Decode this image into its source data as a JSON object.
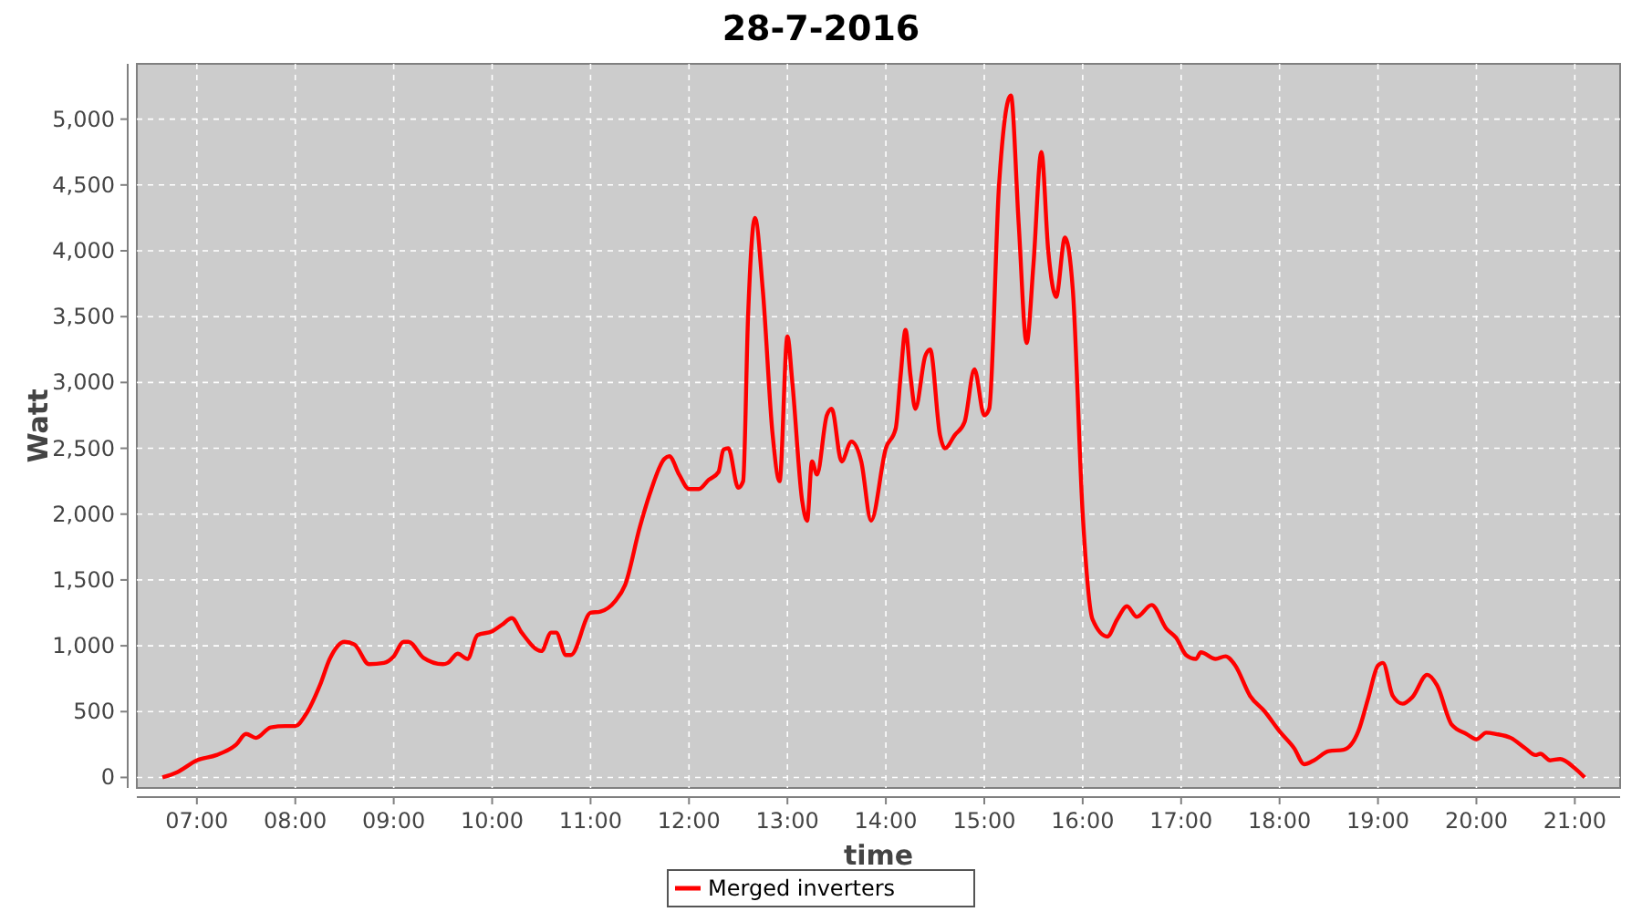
{
  "chart_data": {
    "type": "line",
    "title": "28-7-2016",
    "xlabel": "time",
    "ylabel": "Watt",
    "xlim": [
      6.39,
      21.46
    ],
    "ylim": [
      -80,
      5420
    ],
    "xticks": [
      {
        "value": 7,
        "label": "07:00"
      },
      {
        "value": 8,
        "label": "08:00"
      },
      {
        "value": 9,
        "label": "09:00"
      },
      {
        "value": 10,
        "label": "10:00"
      },
      {
        "value": 11,
        "label": "11:00"
      },
      {
        "value": 12,
        "label": "12:00"
      },
      {
        "value": 13,
        "label": "13:00"
      },
      {
        "value": 14,
        "label": "14:00"
      },
      {
        "value": 15,
        "label": "15:00"
      },
      {
        "value": 16,
        "label": "16:00"
      },
      {
        "value": 17,
        "label": "17:00"
      },
      {
        "value": 18,
        "label": "18:00"
      },
      {
        "value": 19,
        "label": "19:00"
      },
      {
        "value": 20,
        "label": "20:00"
      },
      {
        "value": 21,
        "label": "21:00"
      }
    ],
    "yticks": [
      0,
      500,
      {
        "value": 1000,
        "label": "1,000"
      },
      {
        "value": 1500,
        "label": "1,500"
      },
      {
        "value": 2000,
        "label": "2,000"
      },
      {
        "value": 2500,
        "label": "2,500"
      },
      {
        "value": 3000,
        "label": "3,000"
      },
      {
        "value": 3500,
        "label": "3,500"
      },
      {
        "value": 4000,
        "label": "4,000"
      },
      {
        "value": 4500,
        "label": "4,500"
      },
      {
        "value": 5000,
        "label": "5,000"
      }
    ],
    "grid": true,
    "legend": "bottom",
    "line_style": "solid",
    "marker": "none",
    "x": [
      6.65,
      6.8,
      7.0,
      7.2,
      7.4,
      7.5,
      7.6,
      7.75,
      7.9,
      8.0,
      8.1,
      8.25,
      8.35,
      8.5,
      8.6,
      8.75,
      8.9,
      9.0,
      9.1,
      9.15,
      9.3,
      9.5,
      9.55,
      9.65,
      9.75,
      9.85,
      10.0,
      10.1,
      10.2,
      10.3,
      10.5,
      10.6,
      10.65,
      10.75,
      10.8,
      11.0,
      11.1,
      11.25,
      11.35,
      11.5,
      11.6,
      11.75,
      11.8,
      11.9,
      12.0,
      12.1,
      12.2,
      12.3,
      12.35,
      12.4,
      12.5,
      12.55,
      12.6,
      12.67,
      12.75,
      12.85,
      12.92,
      13.0,
      13.05,
      13.15,
      13.2,
      13.25,
      13.3,
      13.4,
      13.45,
      13.55,
      13.65,
      13.75,
      13.85,
      14.0,
      14.1,
      14.15,
      14.2,
      14.25,
      14.3,
      14.4,
      14.45,
      14.55,
      14.6,
      14.7,
      14.8,
      14.9,
      15.0,
      15.05,
      15.15,
      15.27,
      15.35,
      15.43,
      15.5,
      15.58,
      15.65,
      15.73,
      15.82,
      15.9,
      16.0,
      16.1,
      16.25,
      16.35,
      16.45,
      16.55,
      16.7,
      16.85,
      16.95,
      17.05,
      17.15,
      17.2,
      17.35,
      17.45,
      17.55,
      17.7,
      17.85,
      18.0,
      18.15,
      18.25,
      18.35,
      18.5,
      18.65,
      18.8,
      18.9,
      19.0,
      19.05,
      19.15,
      19.25,
      19.35,
      19.5,
      19.6,
      19.75,
      19.9,
      20.0,
      20.1,
      20.2,
      20.35,
      20.5,
      20.6,
      20.65,
      20.75,
      20.85,
      21.0,
      21.1
    ],
    "series": [
      {
        "name": "Merged inverters",
        "color": "#ff0000",
        "values": [
          0,
          40,
          130,
          170,
          250,
          330,
          300,
          380,
          390,
          390,
          470,
          700,
          900,
          1030,
          1010,
          860,
          870,
          920,
          1030,
          1030,
          910,
          860,
          870,
          940,
          900,
          1080,
          1110,
          1160,
          1210,
          1100,
          960,
          1100,
          1100,
          930,
          930,
          1250,
          1260,
          1340,
          1460,
          1900,
          2150,
          2420,
          2440,
          2300,
          2190,
          2190,
          2260,
          2320,
          2490,
          2500,
          2200,
          2250,
          3500,
          4250,
          3700,
          2600,
          2250,
          3350,
          3000,
          2100,
          1950,
          2400,
          2300,
          2750,
          2800,
          2400,
          2550,
          2400,
          1950,
          2500,
          2650,
          3050,
          3400,
          3050,
          2800,
          3200,
          3250,
          2600,
          2500,
          2600,
          2700,
          3100,
          2750,
          2800,
          4500,
          5180,
          4200,
          3300,
          3900,
          4750,
          4000,
          3650,
          4100,
          3700,
          2000,
          1200,
          1070,
          1200,
          1300,
          1220,
          1310,
          1130,
          1060,
          930,
          900,
          950,
          900,
          920,
          850,
          620,
          500,
          350,
          220,
          100,
          130,
          200,
          210,
          350,
          600,
          850,
          870,
          620,
          560,
          610,
          780,
          700,
          400,
          330,
          290,
          340,
          330,
          300,
          220,
          170,
          180,
          130,
          140,
          70,
          0
        ]
      }
    ]
  }
}
